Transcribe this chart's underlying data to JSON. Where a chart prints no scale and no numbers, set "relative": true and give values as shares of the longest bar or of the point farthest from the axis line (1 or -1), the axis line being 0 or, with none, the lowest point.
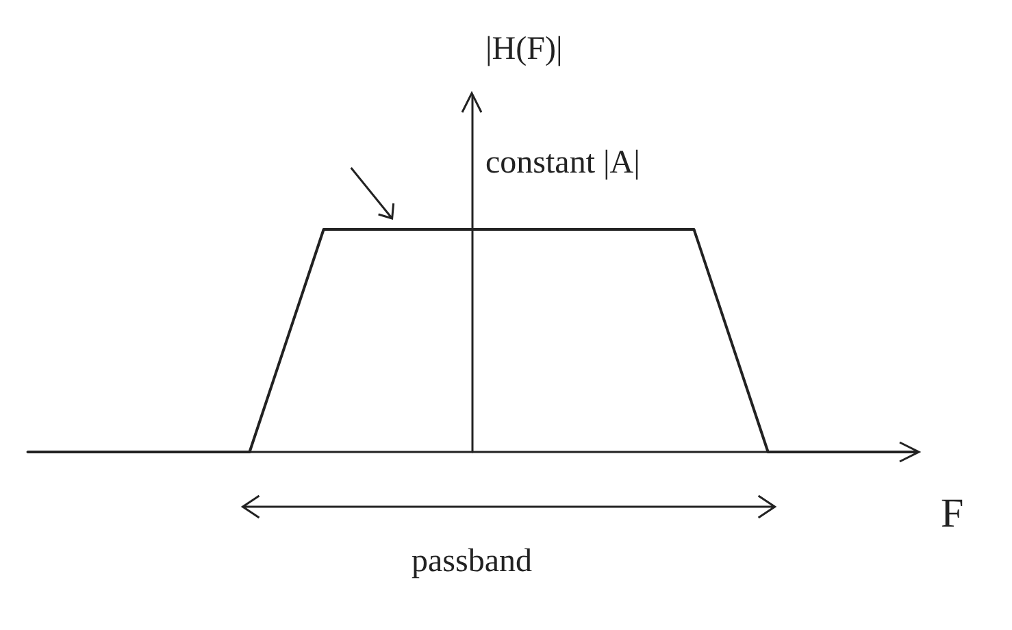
{
  "chart_data": {
    "type": "line",
    "relative": true,
    "xlabel": "F",
    "ylabel": "|H(F)|",
    "annotations": [
      "constant |A|",
      "passband"
    ],
    "categories": [
      null,
      null,
      null,
      null,
      null,
      null,
      null,
      null,
      null,
      null,
      null,
      null,
      null
    ],
    "values": [
      0,
      0,
      0,
      0,
      1,
      1,
      1,
      1,
      1,
      1,
      0,
      0,
      0
    ],
    "color": "#222222",
    "marker": "none",
    "line_style": "solid",
    "grid": false
  }
}
